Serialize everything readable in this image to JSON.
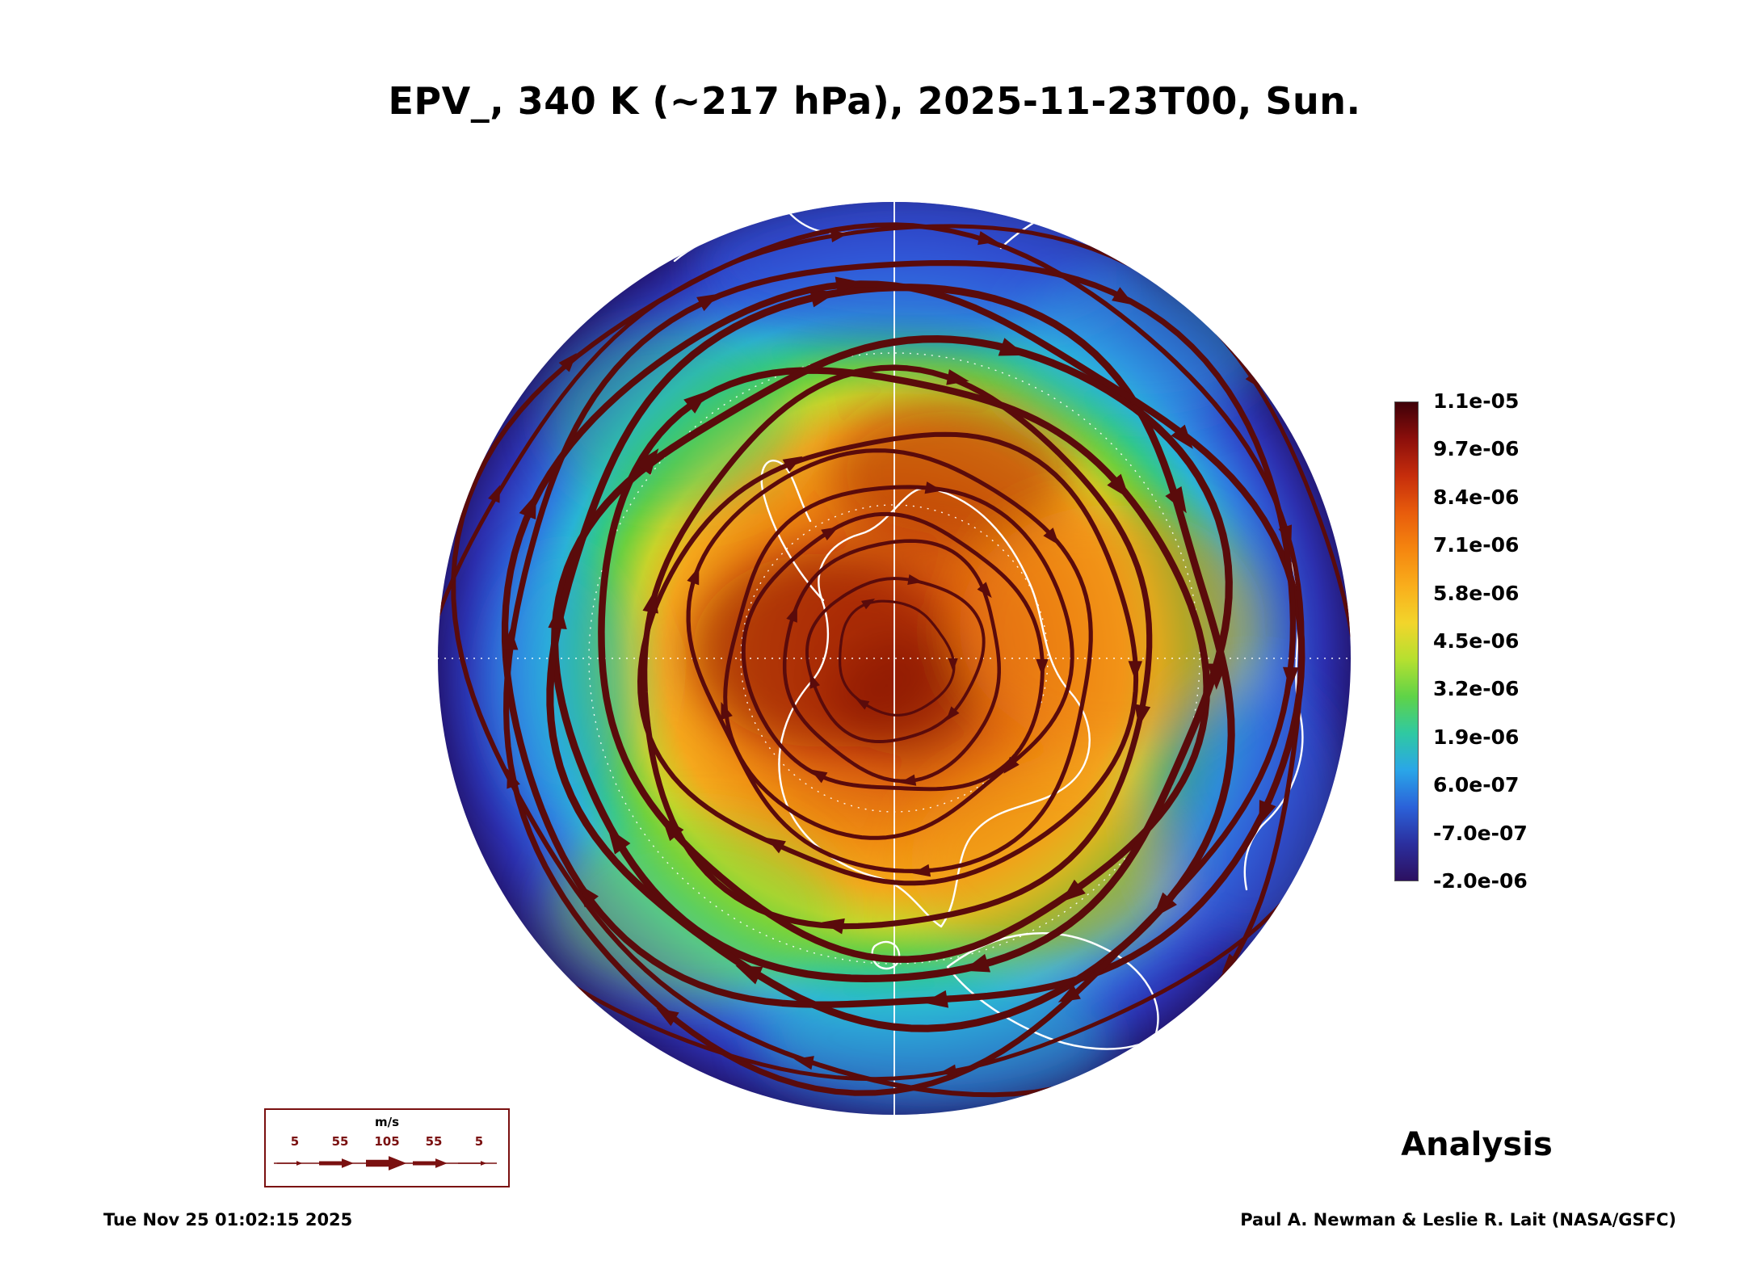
{
  "title": "EPV_, 340 K (~217 hPa), 2025-11-23T00, Sun.",
  "analysis_label": "Analysis",
  "footer": {
    "timestamp": "Tue Nov 25 01:02:15 2025",
    "credit": "Paul A. Newman & Leslie R. Lait (NASA/GSFC)"
  },
  "wind_legend": {
    "units_label": "m/s",
    "speed_ticks": [
      "5",
      "55",
      "105",
      "55",
      "5"
    ],
    "accent_color": "#7a1010"
  },
  "chart_data": {
    "type": "heatmap",
    "title": "EPV_, 340 K (~217 hPa), 2025-11-23T00, Sun.",
    "field": "Ertel potential vorticity (EPV) with horizontal wind streamlines",
    "projection": "south polar stereographic (Antarctica at center)",
    "level": "340 K (~217 hPa)",
    "valid_time": "2025-11-23T00",
    "colorbar": {
      "ticks": [
        "1.1e-05",
        "9.7e-06",
        "8.4e-06",
        "7.1e-06",
        "5.8e-06",
        "4.5e-06",
        "3.2e-06",
        "1.9e-06",
        "6.0e-07",
        "-7.0e-07",
        "-2.0e-06"
      ],
      "colors_top_to_bottom": [
        "#3f0008",
        "#8c0f0b",
        "#c62d0c",
        "#e85c0c",
        "#f5860f",
        "#f9ae1c",
        "#f2d52b",
        "#b5e030",
        "#5fd348",
        "#2fc9a2",
        "#2aa6e8",
        "#2b62d9",
        "#2b2f9e",
        "#2c1060"
      ]
    },
    "radial_profile_estimate": [
      {
        "radius_frac": 0.0,
        "epv": 9e-06
      },
      {
        "radius_frac": 0.2,
        "epv": 8.2e-06
      },
      {
        "radius_frac": 0.4,
        "epv": 6.5e-06
      },
      {
        "radius_frac": 0.55,
        "epv": 4.5e-06
      },
      {
        "radius_frac": 0.7,
        "epv": 2.5e-06
      },
      {
        "radius_frac": 0.85,
        "epv": 6e-07
      },
      {
        "radius_frac": 1.0,
        "epv": -7e-07
      }
    ],
    "streamlines": {
      "color": "#5a0b0b",
      "pattern": "closed circumpolar eastward (clockwise on screen) flow around the pole",
      "max_speed_band_radius_frac": 0.72
    },
    "coastline_color": "#ffffff",
    "graticule_color": "#ffffff"
  }
}
